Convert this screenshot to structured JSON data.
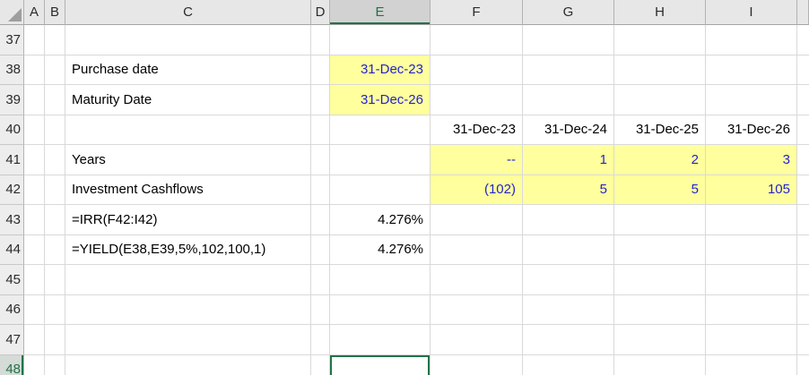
{
  "colors": {
    "accent_green": "#217346",
    "fill_yellow": "#FFFF9E",
    "font_blue": "#2323CE",
    "gridline": "#D9D9D9",
    "header_bg": "#E7E7E7",
    "selected_header_bg": "#D2D2D2"
  },
  "grid": {
    "column_headers": [
      "A",
      "B",
      "C",
      "D",
      "E",
      "F",
      "G",
      "H",
      "I",
      ""
    ],
    "row_headers": [
      "37",
      "38",
      "39",
      "40",
      "41",
      "42",
      "43",
      "44",
      "45",
      "46",
      "47",
      "48"
    ],
    "selection": {
      "active_cell": "E48",
      "selected_column": "E",
      "selected_row": "48"
    },
    "cells": {
      "C38": {
        "text": "Purchase date",
        "align": "left"
      },
      "E38": {
        "text": "31-Dec-23",
        "align": "right",
        "fill": "yellow",
        "color": "blue"
      },
      "C39": {
        "text": "Maturity Date",
        "align": "left"
      },
      "E39": {
        "text": "31-Dec-26",
        "align": "right",
        "fill": "yellow",
        "color": "blue"
      },
      "F40": {
        "text": "31-Dec-23",
        "align": "right"
      },
      "G40": {
        "text": "31-Dec-24",
        "align": "right"
      },
      "H40": {
        "text": "31-Dec-25",
        "align": "right"
      },
      "I40": {
        "text": "31-Dec-26",
        "align": "right"
      },
      "C41": {
        "text": "Years",
        "align": "left"
      },
      "F41": {
        "text": "--",
        "align": "right",
        "fill": "yellow",
        "color": "blue"
      },
      "G41": {
        "text": "1",
        "align": "right",
        "fill": "yellow",
        "color": "blue"
      },
      "H41": {
        "text": "2",
        "align": "right",
        "fill": "yellow",
        "color": "blue"
      },
      "I41": {
        "text": "3",
        "align": "right",
        "fill": "yellow",
        "color": "blue"
      },
      "C42": {
        "text": "Investment Cashflows",
        "align": "left"
      },
      "F42": {
        "text": "(102)",
        "align": "right",
        "fill": "yellow",
        "color": "blue"
      },
      "G42": {
        "text": "5",
        "align": "right",
        "fill": "yellow",
        "color": "blue"
      },
      "H42": {
        "text": "5",
        "align": "right",
        "fill": "yellow",
        "color": "blue"
      },
      "I42": {
        "text": "105",
        "align": "right",
        "fill": "yellow",
        "color": "blue"
      },
      "C43": {
        "text": "=IRR(F42:I42)",
        "align": "left"
      },
      "E43": {
        "text": "4.276%",
        "align": "right"
      },
      "C44": {
        "text": "=YIELD(E38,E39,5%,102,100,1)",
        "align": "left"
      },
      "E44": {
        "text": "4.276%",
        "align": "right"
      }
    }
  }
}
